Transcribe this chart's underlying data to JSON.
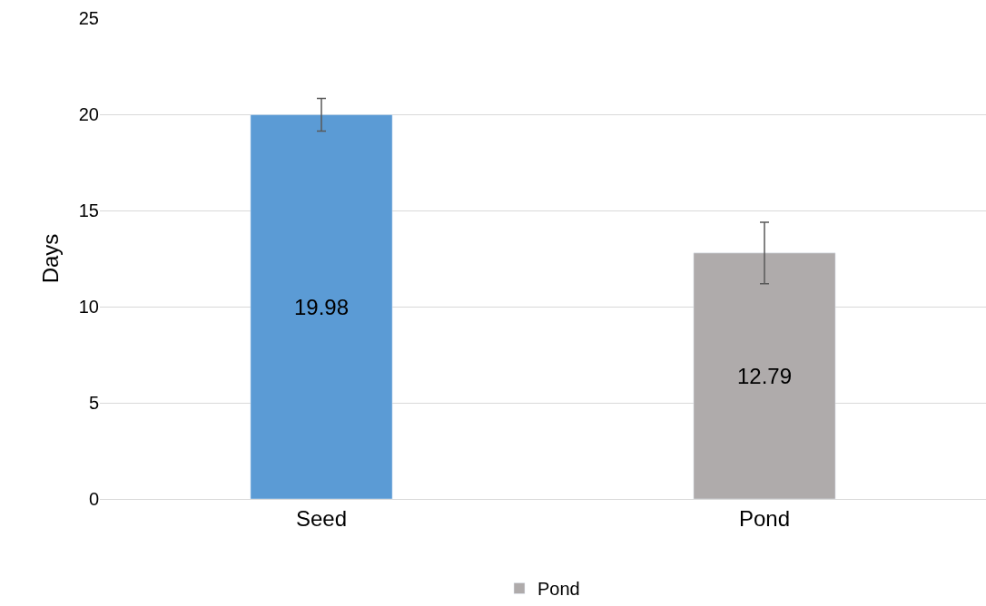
{
  "chart_data": {
    "type": "bar",
    "ylabel": "Days",
    "categories": [
      "Seed",
      "Pond"
    ],
    "series": [
      {
        "color": "#5b9bd5",
        "values": [
          19.98,
          null
        ],
        "errors": [
          0.85,
          null
        ]
      },
      {
        "name": "Pond",
        "color": "#afabab",
        "values": [
          null,
          12.79
        ],
        "errors": [
          null,
          1.6
        ]
      }
    ],
    "ylim": [
      0,
      25
    ],
    "yticks": [
      0,
      5,
      10,
      15,
      20,
      25
    ],
    "grid": "y",
    "legend": "bottom",
    "data_labels": true
  }
}
